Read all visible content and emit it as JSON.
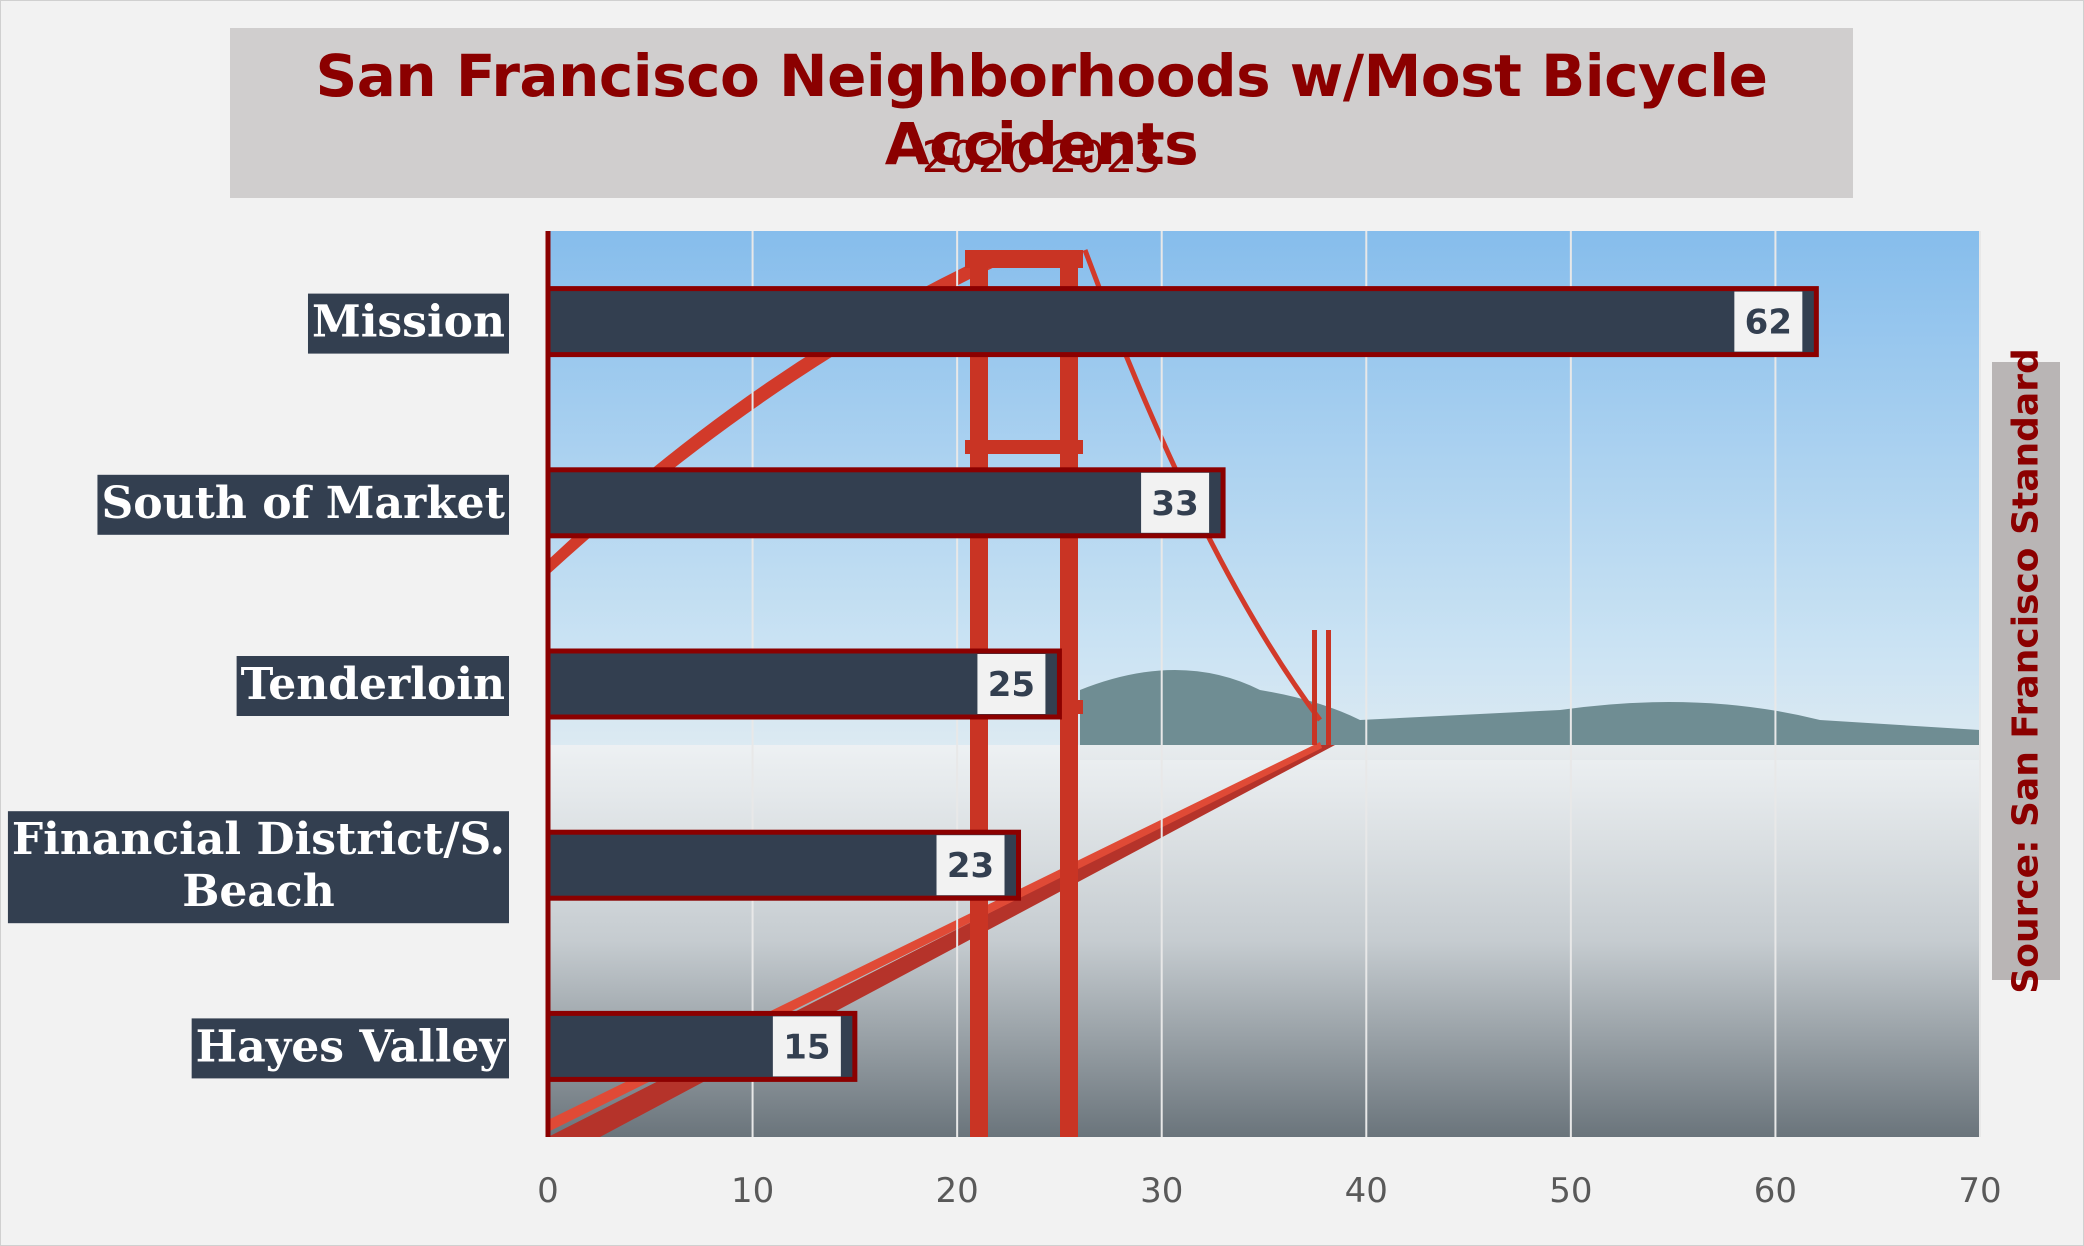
{
  "chart_data": {
    "type": "bar",
    "orientation": "horizontal",
    "title": "San Francisco Neighborhoods w/Most Bicycle Accidents",
    "subtitle": "2020-2023",
    "source": "Source: San Francisco Standard",
    "categories": [
      "Mission",
      "South of Market",
      "Tenderloin",
      "Financial District/S. Beach",
      "Hayes Valley"
    ],
    "category_lines": [
      [
        "Mission"
      ],
      [
        "South of Market"
      ],
      [
        "Tenderloin"
      ],
      [
        "Financial District/S.",
        "Beach"
      ],
      [
        "Hayes Valley"
      ]
    ],
    "values": [
      62,
      33,
      25,
      23,
      15
    ],
    "xlim": [
      0,
      70
    ],
    "xticks": [
      "0",
      "10",
      "20",
      "30",
      "40",
      "50",
      "60",
      "70"
    ],
    "grid": true,
    "legend": "none",
    "colors": {
      "bar": "#333f50",
      "bar_border": "#8b0000",
      "title": "#8b0000",
      "label_bg": "#333f50",
      "value_box": "#f2f2f2",
      "sky_top": "#8fc4ee",
      "fog": "#d8dadc",
      "bridge": "#d23a2a"
    }
  }
}
